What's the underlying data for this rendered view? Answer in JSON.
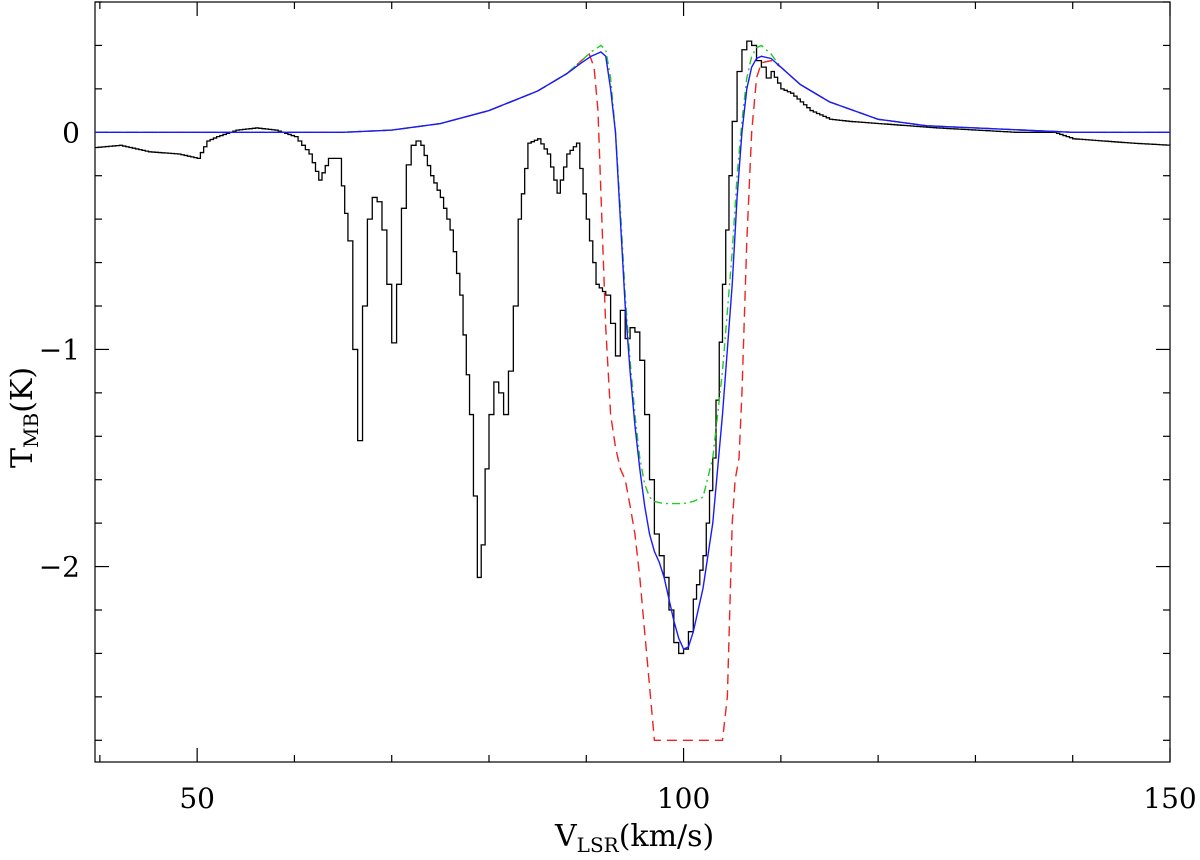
{
  "chart_data": {
    "type": "line",
    "xlabel": "V",
    "xlabel_sub": "LSR",
    "xlabel_unit": "(km/s)",
    "ylabel": "T",
    "ylabel_sub": "MB",
    "ylabel_unit": "(K)",
    "xlim": [
      39.5,
      150
    ],
    "ylim": [
      -2.9,
      0.6
    ],
    "x_tick_labels": [
      "50",
      "100",
      "150"
    ],
    "x_ticks": [
      50,
      100,
      150
    ],
    "y_tick_labels": [
      "0",
      "−1",
      "−2"
    ],
    "y_ticks": [
      0,
      -1,
      -2
    ],
    "grid": false,
    "colors": {
      "observed": "#000000",
      "model_blue": "#1a1aff",
      "model_green": "#22cc22",
      "model_red": "#ee2222"
    },
    "series": [
      {
        "id": "observed",
        "style": "step",
        "x": [
          39.5,
          42,
          45,
          48,
          50,
          51,
          52,
          54,
          56,
          58,
          60,
          61.5,
          62.5,
          63.5,
          64.5,
          65.5,
          66,
          66.5,
          67,
          67.5,
          68,
          68.5,
          69,
          69.5,
          70,
          70.5,
          71,
          71.5,
          72,
          72.5,
          73,
          74,
          75,
          76,
          77,
          78,
          78.8,
          79.2,
          79.6,
          80,
          80.5,
          81,
          81.5,
          82,
          82.5,
          83,
          84,
          85,
          86,
          87,
          88,
          89,
          90,
          91,
          92,
          92.5,
          93,
          93.5,
          94,
          94.5,
          95,
          95.5,
          96,
          96.5,
          97,
          97.5,
          98,
          98.5,
          99,
          99.5,
          100,
          100.5,
          101,
          102,
          103,
          104,
          105,
          105.5,
          106,
          106.5,
          107,
          107.5,
          108,
          108.5,
          109,
          110,
          111,
          112,
          113,
          114,
          115,
          117,
          120,
          123,
          126,
          130,
          134,
          138,
          140,
          143,
          146,
          150
        ],
        "y": [
          -0.07,
          -0.06,
          -0.09,
          -0.1,
          -0.12,
          -0.04,
          -0.02,
          0.01,
          0.02,
          0.01,
          -0.02,
          -0.1,
          -0.22,
          -0.12,
          -0.12,
          -0.5,
          -1.0,
          -1.42,
          -0.8,
          -0.4,
          -0.3,
          -0.32,
          -0.45,
          -0.7,
          -0.97,
          -0.7,
          -0.35,
          -0.15,
          -0.06,
          -0.04,
          -0.06,
          -0.2,
          -0.3,
          -0.45,
          -0.75,
          -1.3,
          -2.05,
          -1.9,
          -1.55,
          -1.3,
          -1.15,
          -1.2,
          -1.3,
          -1.1,
          -0.8,
          -0.4,
          -0.05,
          -0.03,
          -0.1,
          -0.28,
          -0.1,
          -0.05,
          -0.4,
          -0.7,
          -0.75,
          -0.88,
          -1.03,
          -0.82,
          -0.95,
          -0.9,
          -0.92,
          -1.05,
          -1.3,
          -1.6,
          -1.85,
          -1.95,
          -2.05,
          -2.2,
          -2.35,
          -2.4,
          -2.38,
          -2.3,
          -2.15,
          -1.95,
          -1.5,
          -0.7,
          0.05,
          0.28,
          0.38,
          0.42,
          0.4,
          0.33,
          0.3,
          0.25,
          0.28,
          0.2,
          0.18,
          0.14,
          0.1,
          0.08,
          0.06,
          0.05,
          0.04,
          0.03,
          0.02,
          0.01,
          0.0,
          0.0,
          -0.03,
          -0.04,
          -0.05,
          -0.06
        ]
      },
      {
        "id": "model-blue",
        "style": "solid",
        "x": [
          39.5,
          50,
          60,
          65,
          70,
          75,
          80,
          85,
          88,
          89.5,
          90.5,
          91,
          91.5,
          92,
          92.5,
          93,
          93.5,
          94,
          94.5,
          95,
          95.5,
          96,
          96.5,
          97,
          97.5,
          98,
          98.5,
          99,
          99.5,
          100,
          100.5,
          101,
          102,
          103,
          104,
          105,
          105.5,
          106,
          106.5,
          107,
          107.5,
          108,
          109,
          110,
          112,
          115,
          120,
          125,
          130,
          140,
          150
        ],
        "y": [
          0,
          0,
          0.0,
          0.0,
          0.01,
          0.04,
          0.1,
          0.19,
          0.27,
          0.32,
          0.35,
          0.36,
          0.37,
          0.35,
          0.2,
          0.0,
          -0.4,
          -0.8,
          -1.1,
          -1.35,
          -1.55,
          -1.72,
          -1.85,
          -1.93,
          -1.98,
          -2.05,
          -2.15,
          -2.25,
          -2.33,
          -2.38,
          -2.37,
          -2.3,
          -2.1,
          -1.8,
          -1.3,
          -0.7,
          -0.3,
          0.0,
          0.2,
          0.3,
          0.34,
          0.35,
          0.34,
          0.3,
          0.22,
          0.14,
          0.06,
          0.03,
          0.02,
          0.0,
          0.0
        ]
      },
      {
        "id": "model-green",
        "style": "dash-dot",
        "x": [
          39.5,
          50,
          60,
          65,
          70,
          75,
          80,
          85,
          88,
          89.5,
          90.5,
          91.5,
          92,
          92.5,
          93,
          93.5,
          94,
          94.5,
          95,
          95.5,
          96,
          96.5,
          97,
          98,
          99,
          100,
          101,
          102,
          103,
          104,
          105,
          105.5,
          106,
          106.5,
          107,
          107.5,
          108,
          109,
          110,
          112,
          115,
          120,
          125,
          130,
          140,
          150
        ],
        "y": [
          0,
          0,
          0.0,
          0.0,
          0.01,
          0.04,
          0.1,
          0.19,
          0.27,
          0.33,
          0.37,
          0.4,
          0.38,
          0.25,
          0.0,
          -0.35,
          -0.75,
          -1.05,
          -1.3,
          -1.5,
          -1.62,
          -1.68,
          -1.7,
          -1.71,
          -1.71,
          -1.71,
          -1.7,
          -1.68,
          -1.5,
          -1.1,
          -0.55,
          -0.2,
          0.05,
          0.25,
          0.35,
          0.39,
          0.4,
          0.36,
          0.3,
          0.22,
          0.14,
          0.06,
          0.03,
          0.02,
          0.0,
          0.0
        ]
      },
      {
        "id": "model-red",
        "style": "dashed",
        "x": [
          39.5,
          50,
          60,
          65,
          70,
          75,
          80,
          85,
          88,
          89.5,
          90.3,
          90.8,
          91.2,
          91.6,
          92,
          92.5,
          93,
          93.5,
          94,
          94.5,
          95,
          95.5,
          96,
          96.5,
          97,
          98,
          100,
          102,
          103,
          104,
          104.5,
          105,
          105.3,
          105.7,
          106,
          106.5,
          107,
          107.5,
          108,
          109,
          110,
          112,
          115,
          120,
          125,
          130,
          140,
          150
        ],
        "y": [
          0,
          0,
          0.0,
          0.0,
          0.01,
          0.04,
          0.1,
          0.19,
          0.27,
          0.33,
          0.36,
          0.3,
          0.1,
          -0.4,
          -0.9,
          -1.3,
          -1.45,
          -1.55,
          -1.6,
          -1.72,
          -1.85,
          -2.05,
          -2.3,
          -2.55,
          -2.8,
          -2.8,
          -2.8,
          -2.8,
          -2.8,
          -2.8,
          -2.6,
          -1.8,
          -1.6,
          -1.5,
          -1.2,
          -0.5,
          0.0,
          0.25,
          0.32,
          0.33,
          0.3,
          0.22,
          0.14,
          0.06,
          0.03,
          0.02,
          0.0,
          0.0
        ]
      }
    ]
  }
}
